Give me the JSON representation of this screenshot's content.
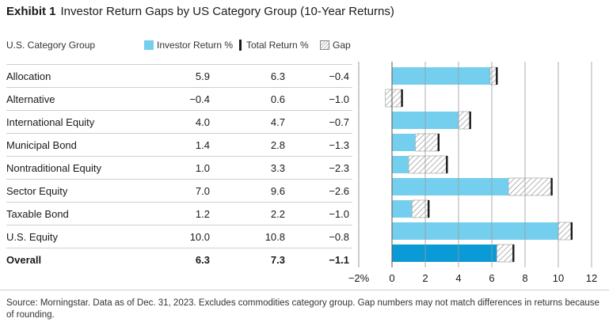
{
  "exhibit": "Exhibit 1",
  "title": "Investor Return Gaps by US Category Group (10-Year Returns)",
  "table_header": {
    "category": "U.S. Category Group"
  },
  "legend": {
    "investor": "Investor Return %",
    "total": "Total Return %",
    "gap": "Gap"
  },
  "colors": {
    "investor": "#74cfee",
    "overall": "#0a9ad6",
    "total_marker": "#1a1a1a",
    "gap_stroke": "#9a9a9a",
    "grid": "#9a9a9a"
  },
  "chart_data": {
    "type": "bar",
    "orientation": "horizontal",
    "categories": [
      "Allocation",
      "Alternative",
      "International Equity",
      "Municipal Bond",
      "Nontraditional Equity",
      "Sector Equity",
      "Taxable Bond",
      "U.S. Equity",
      "Overall"
    ],
    "series": [
      {
        "name": "Investor Return %",
        "values": [
          5.9,
          -0.4,
          4.0,
          1.4,
          1.0,
          7.0,
          1.2,
          10.0,
          6.3
        ]
      },
      {
        "name": "Total Return %",
        "values": [
          6.3,
          0.6,
          4.7,
          2.8,
          3.3,
          9.6,
          2.2,
          10.8,
          7.3
        ]
      },
      {
        "name": "Gap",
        "values": [
          -0.4,
          -1.0,
          -0.7,
          -1.3,
          -2.3,
          -2.6,
          -1.0,
          -0.8,
          -1.1
        ]
      }
    ],
    "display": {
      "investor": [
        "5.9",
        "−0.4",
        "4.0",
        "1.4",
        "1.0",
        "7.0",
        "1.2",
        "10.0",
        "6.3"
      ],
      "total": [
        "6.3",
        "0.6",
        "4.7",
        "2.8",
        "3.3",
        "9.6",
        "2.2",
        "10.8",
        "7.3"
      ],
      "gap": [
        "−0.4",
        "−1.0",
        "−0.7",
        "−1.3",
        "−2.3",
        "−2.6",
        "−1.0",
        "−0.8",
        "−1.1"
      ]
    },
    "xlim": [
      -2,
      12
    ],
    "xticks": [
      -2,
      0,
      2,
      4,
      6,
      8,
      10,
      12
    ],
    "xtick_labels": [
      "−2%",
      "0",
      "2",
      "4",
      "6",
      "8",
      "10",
      "12"
    ],
    "grid": true,
    "legend_position": "top"
  },
  "source": "Source: Morningstar. Data as of Dec. 31, 2023. Excludes commodities category group. Gap numbers may not match differences in returns because of rounding."
}
